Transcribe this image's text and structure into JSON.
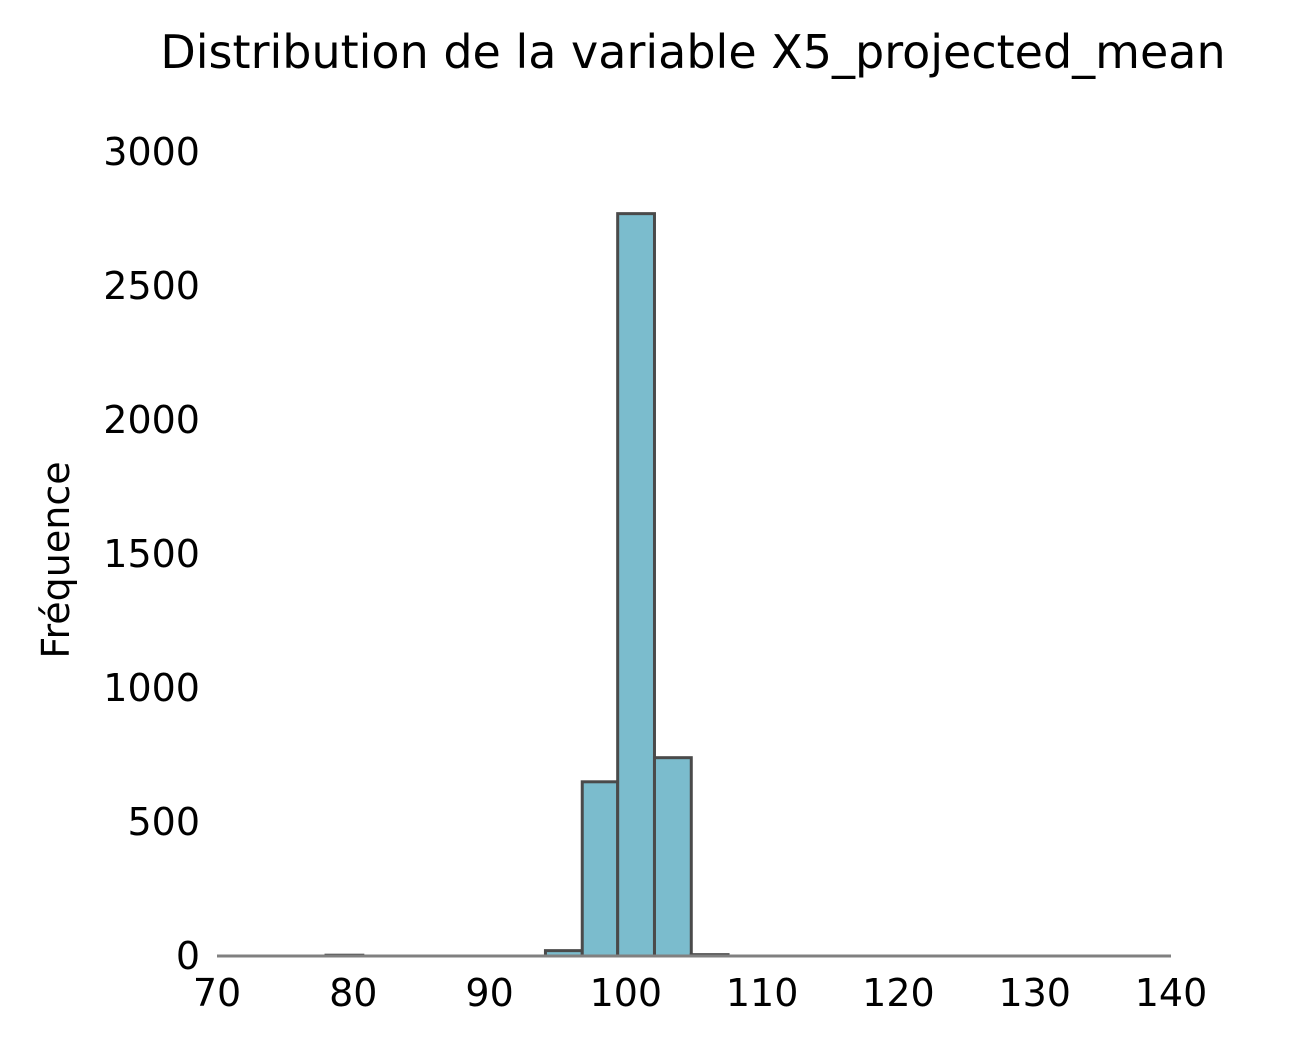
{
  "chart_data": {
    "type": "bar",
    "title": "Distribution de la variable X5_projected_mean",
    "xlabel": "",
    "ylabel": "Fréquence",
    "xlim": [
      70,
      140
    ],
    "ylim": [
      0,
      3000
    ],
    "x_ticks": [
      70,
      80,
      90,
      100,
      110,
      120,
      130,
      140
    ],
    "y_ticks": [
      0,
      500,
      1000,
      1500,
      2000,
      2500,
      3000
    ],
    "bins": [
      {
        "x0": 78.0,
        "x1": 80.7,
        "value": 3
      },
      {
        "x0": 94.1,
        "x1": 96.8,
        "value": 20
      },
      {
        "x0": 96.8,
        "x1": 99.4,
        "value": 650
      },
      {
        "x0": 99.4,
        "x1": 102.1,
        "value": 2770
      },
      {
        "x0": 102.1,
        "x1": 104.8,
        "value": 740
      },
      {
        "x0": 104.8,
        "x1": 107.5,
        "value": 5
      }
    ],
    "grid": false,
    "bar_color": "#7bbccd",
    "edge_color": "#4a4a4a",
    "axis_color": "#808080"
  }
}
